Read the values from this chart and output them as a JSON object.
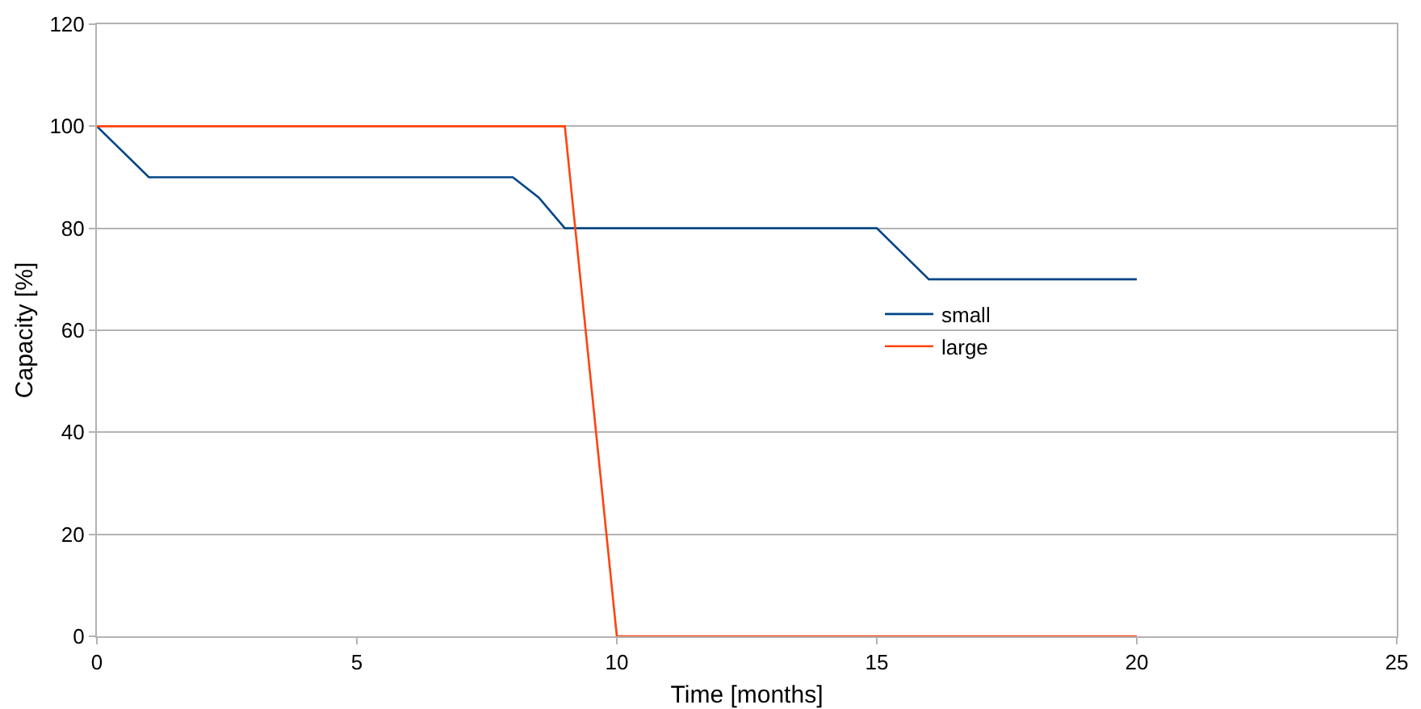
{
  "chart_data": {
    "type": "line",
    "xlabel": "Time [months]",
    "ylabel": "Capacity [%]",
    "xlim": [
      0,
      25
    ],
    "xticks": [
      0,
      5,
      10,
      15,
      20,
      25
    ],
    "ylim": [
      0,
      120
    ],
    "yticks": [
      0,
      20,
      40,
      60,
      80,
      100,
      120
    ],
    "grid": "y",
    "legend": "right",
    "marker": "none",
    "line_style": "solid",
    "series": [
      {
        "name": "small",
        "color": "#004586",
        "x": [
          0,
          1,
          8,
          8.5,
          9,
          15,
          16,
          20
        ],
        "values": [
          100,
          90,
          90,
          86,
          80,
          80,
          70,
          70
        ]
      },
      {
        "name": "large",
        "color": "#ff420e",
        "x": [
          0,
          9,
          10,
          20
        ],
        "values": [
          100,
          100,
          0,
          0
        ]
      }
    ]
  }
}
